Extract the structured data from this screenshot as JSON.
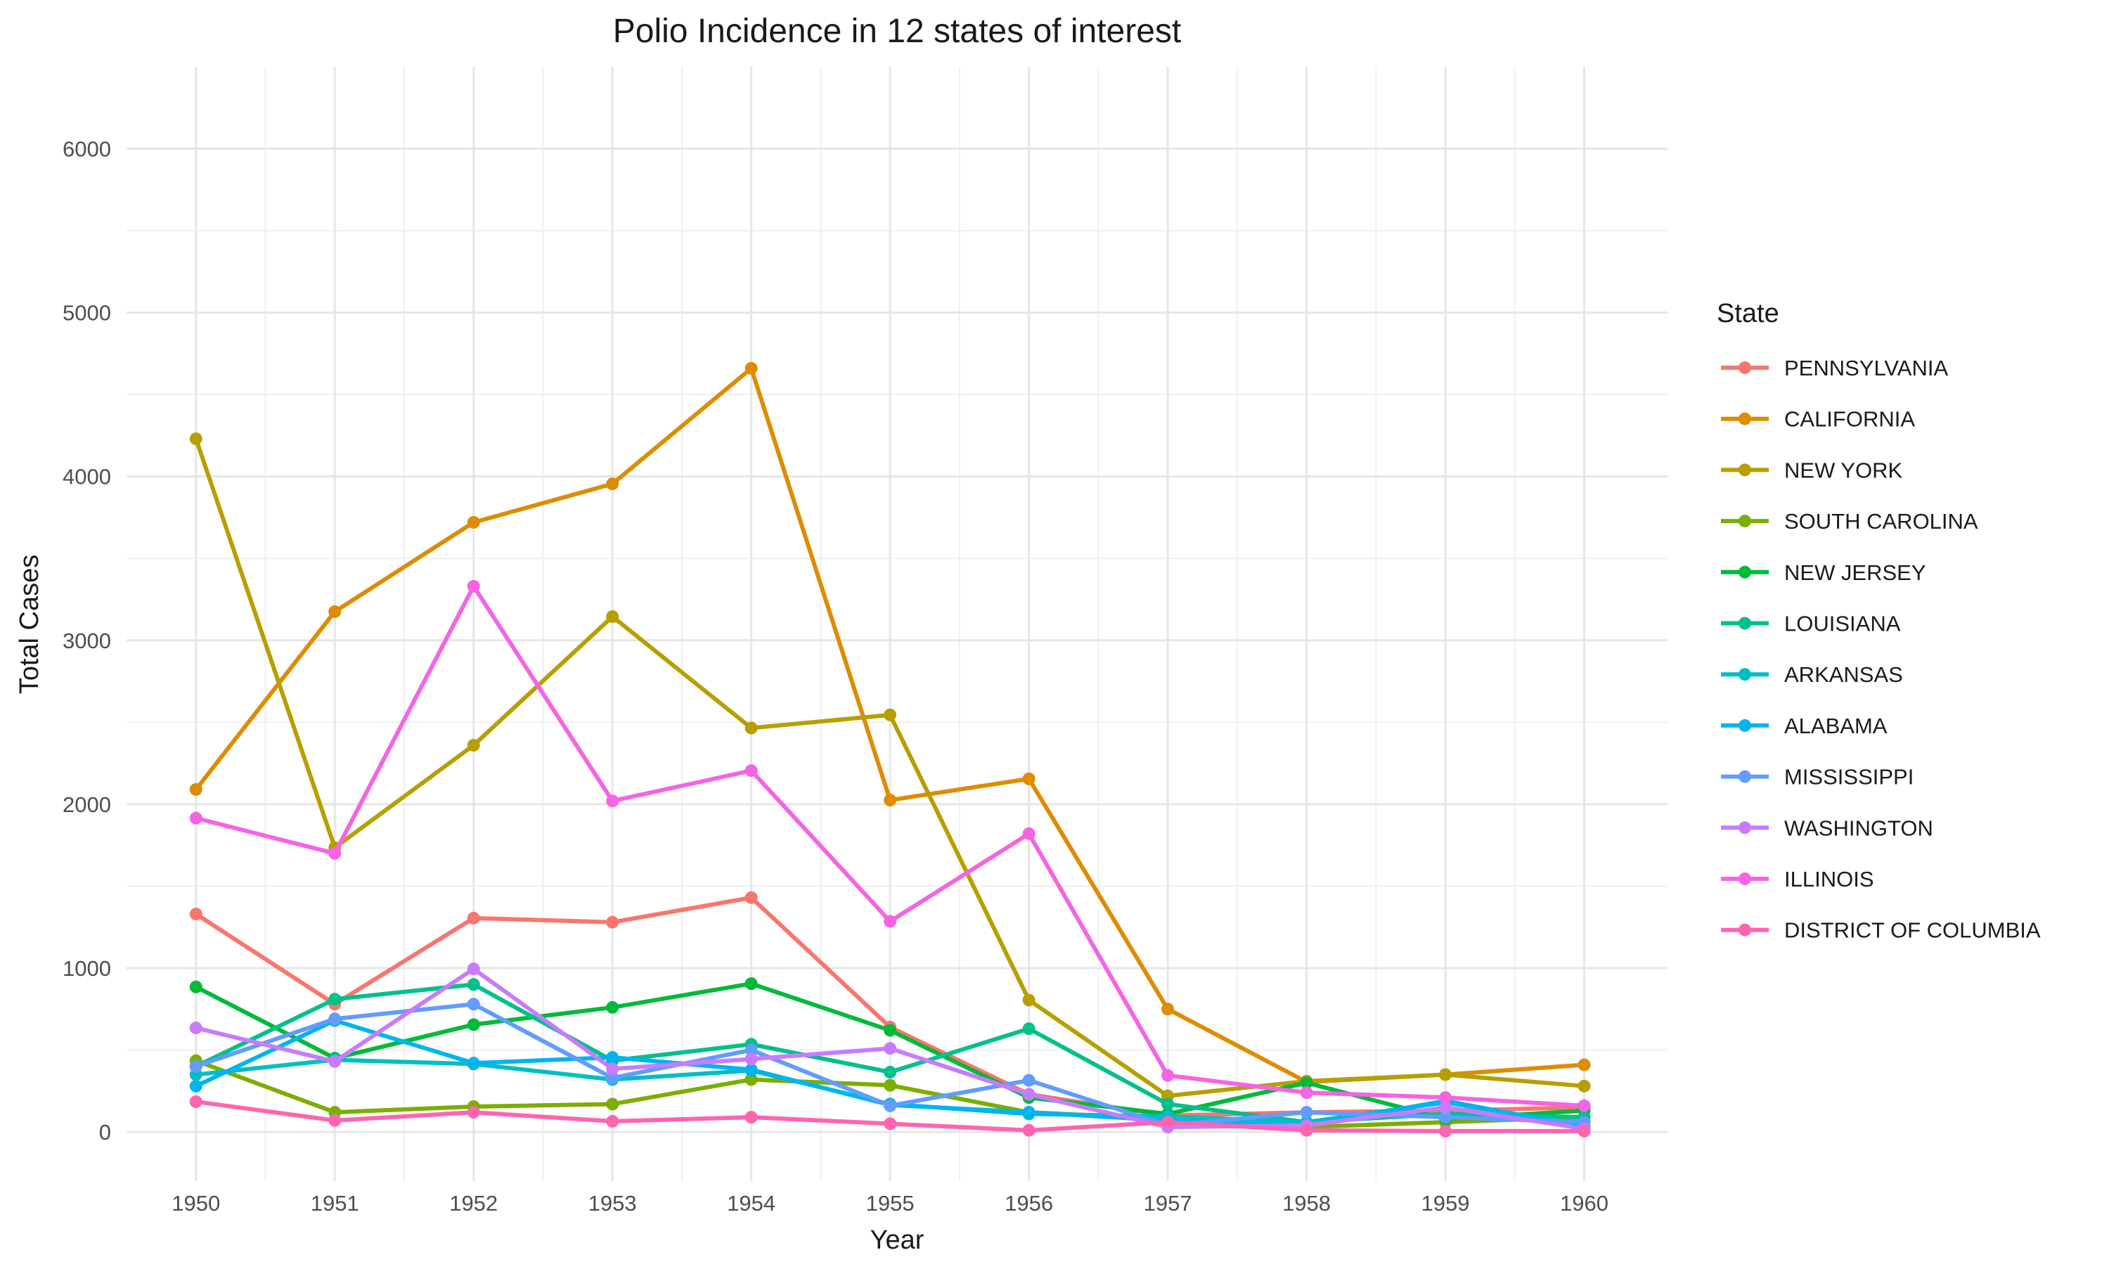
{
  "chart_data": {
    "type": "line",
    "title": "Polio Incidence in 12 states of interest",
    "xlabel": "Year",
    "ylabel": "Total Cases",
    "legend_title": "State",
    "legend_position": "right",
    "grid": true,
    "x": [
      1950,
      1951,
      1952,
      1953,
      1954,
      1955,
      1956,
      1957,
      1958,
      1959,
      1960
    ],
    "ylim": [
      -300,
      6500
    ],
    "yticks": [
      0,
      1000,
      2000,
      3000,
      4000,
      5000,
      6000
    ],
    "series": [
      {
        "name": "PENNSYLVANIA",
        "color": "#F8766D",
        "values": [
          1330,
          780,
          1305,
          1280,
          1430,
          640,
          230,
          100,
          120,
          130,
          150
        ]
      },
      {
        "name": "CALIFORNIA",
        "color": "#DE8C00",
        "values": [
          2090,
          3175,
          3720,
          3955,
          4660,
          2025,
          2155,
          750,
          305,
          350,
          410
        ]
      },
      {
        "name": "NEW YORK",
        "color": "#B79F00",
        "values": [
          4230,
          1735,
          2360,
          3145,
          2465,
          2545,
          805,
          220,
          310,
          350,
          280
        ]
      },
      {
        "name": "SOUTH CAROLINA",
        "color": "#7CAE00",
        "values": [
          435,
          120,
          155,
          170,
          320,
          285,
          120,
          80,
          30,
          60,
          90
        ]
      },
      {
        "name": "NEW JERSEY",
        "color": "#00BA38",
        "values": [
          885,
          450,
          655,
          760,
          905,
          620,
          210,
          110,
          300,
          80,
          130
        ]
      },
      {
        "name": "LOUISIANA",
        "color": "#00C08B",
        "values": [
          400,
          810,
          900,
          435,
          535,
          365,
          630,
          170,
          60,
          110,
          90
        ]
      },
      {
        "name": "ARKANSAS",
        "color": "#00BFC4",
        "values": [
          350,
          440,
          415,
          320,
          375,
          170,
          110,
          95,
          60,
          180,
          40
        ]
      },
      {
        "name": "ALABAMA",
        "color": "#00B4F0",
        "values": [
          280,
          680,
          420,
          455,
          380,
          165,
          120,
          70,
          40,
          190,
          30
        ]
      },
      {
        "name": "MISSISSIPPI",
        "color": "#619CFF",
        "values": [
          400,
          690,
          780,
          330,
          500,
          160,
          315,
          40,
          120,
          90,
          60
        ]
      },
      {
        "name": "WASHINGTON",
        "color": "#C77CFF",
        "values": [
          635,
          430,
          995,
          385,
          445,
          510,
          230,
          30,
          40,
          150,
          20
        ]
      },
      {
        "name": "ILLINOIS",
        "color": "#F564E3",
        "values": [
          1915,
          1700,
          3330,
          2020,
          2205,
          1285,
          1820,
          345,
          240,
          210,
          160
        ]
      },
      {
        "name": "DISTRICT OF COLUMBIA",
        "color": "#FF64B0",
        "values": [
          185,
          70,
          120,
          65,
          90,
          50,
          10,
          60,
          10,
          5,
          5
        ]
      }
    ]
  }
}
